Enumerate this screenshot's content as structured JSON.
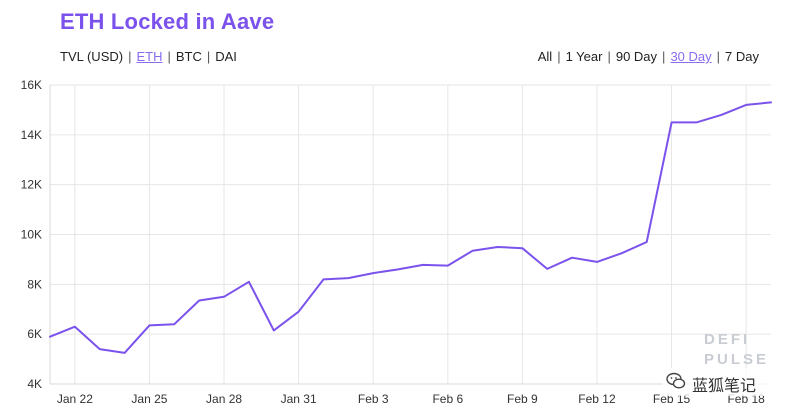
{
  "title": "ETH Locked in Aave",
  "metric_toggle": [
    {
      "label": "TVL (USD)",
      "active": false
    },
    {
      "label": "ETH",
      "active": true
    },
    {
      "label": "BTC",
      "active": false
    },
    {
      "label": "DAI",
      "active": false
    }
  ],
  "range_toggle": [
    {
      "label": "All",
      "active": false
    },
    {
      "label": "1 Year",
      "active": false
    },
    {
      "label": "90 Day",
      "active": false
    },
    {
      "label": "30 Day",
      "active": true
    },
    {
      "label": "7 Day",
      "active": false
    }
  ],
  "brand": {
    "line1": "DEFI",
    "line2": "PULSE"
  },
  "watermark": {
    "text": "蓝狐笔记",
    "icon": "wechat-icon"
  },
  "colors": {
    "accent": "#7b52ec",
    "line": "#7b52ec",
    "grid": "#e6e6e6",
    "active_toggle": "#8a6cf0"
  },
  "chart_data": {
    "type": "line",
    "x": [
      "Jan 21",
      "Jan 22",
      "Jan 23",
      "Jan 24",
      "Jan 25",
      "Jan 26",
      "Jan 27",
      "Jan 28",
      "Jan 29",
      "Jan 30",
      "Jan 31",
      "Feb 1",
      "Feb 2",
      "Feb 3",
      "Feb 4",
      "Feb 5",
      "Feb 6",
      "Feb 7",
      "Feb 8",
      "Feb 9",
      "Feb 10",
      "Feb 11",
      "Feb 12",
      "Feb 13",
      "Feb 14",
      "Feb 15",
      "Feb 16",
      "Feb 17",
      "Feb 18",
      "Feb 19"
    ],
    "values": [
      5900,
      6300,
      5400,
      5250,
      6350,
      6400,
      7350,
      7500,
      8100,
      6150,
      6900,
      8200,
      8250,
      8450,
      8600,
      8780,
      8750,
      9350,
      9500,
      9450,
      8620,
      9070,
      8900,
      9250,
      9700,
      14500,
      14500,
      14800,
      15200,
      15300
    ],
    "x_tick_labels": [
      "Jan 22",
      "Jan 25",
      "Jan 28",
      "Jan 31",
      "Feb 3",
      "Feb 6",
      "Feb 9",
      "Feb 12",
      "Feb 15",
      "Feb 18"
    ],
    "y_tick_labels": [
      "4K",
      "6K",
      "8K",
      "10K",
      "12K",
      "14K",
      "16K"
    ],
    "y_ticks": [
      4000,
      6000,
      8000,
      10000,
      12000,
      14000,
      16000
    ],
    "ylim": [
      4000,
      16000
    ],
    "grid": true,
    "legend": "none"
  }
}
